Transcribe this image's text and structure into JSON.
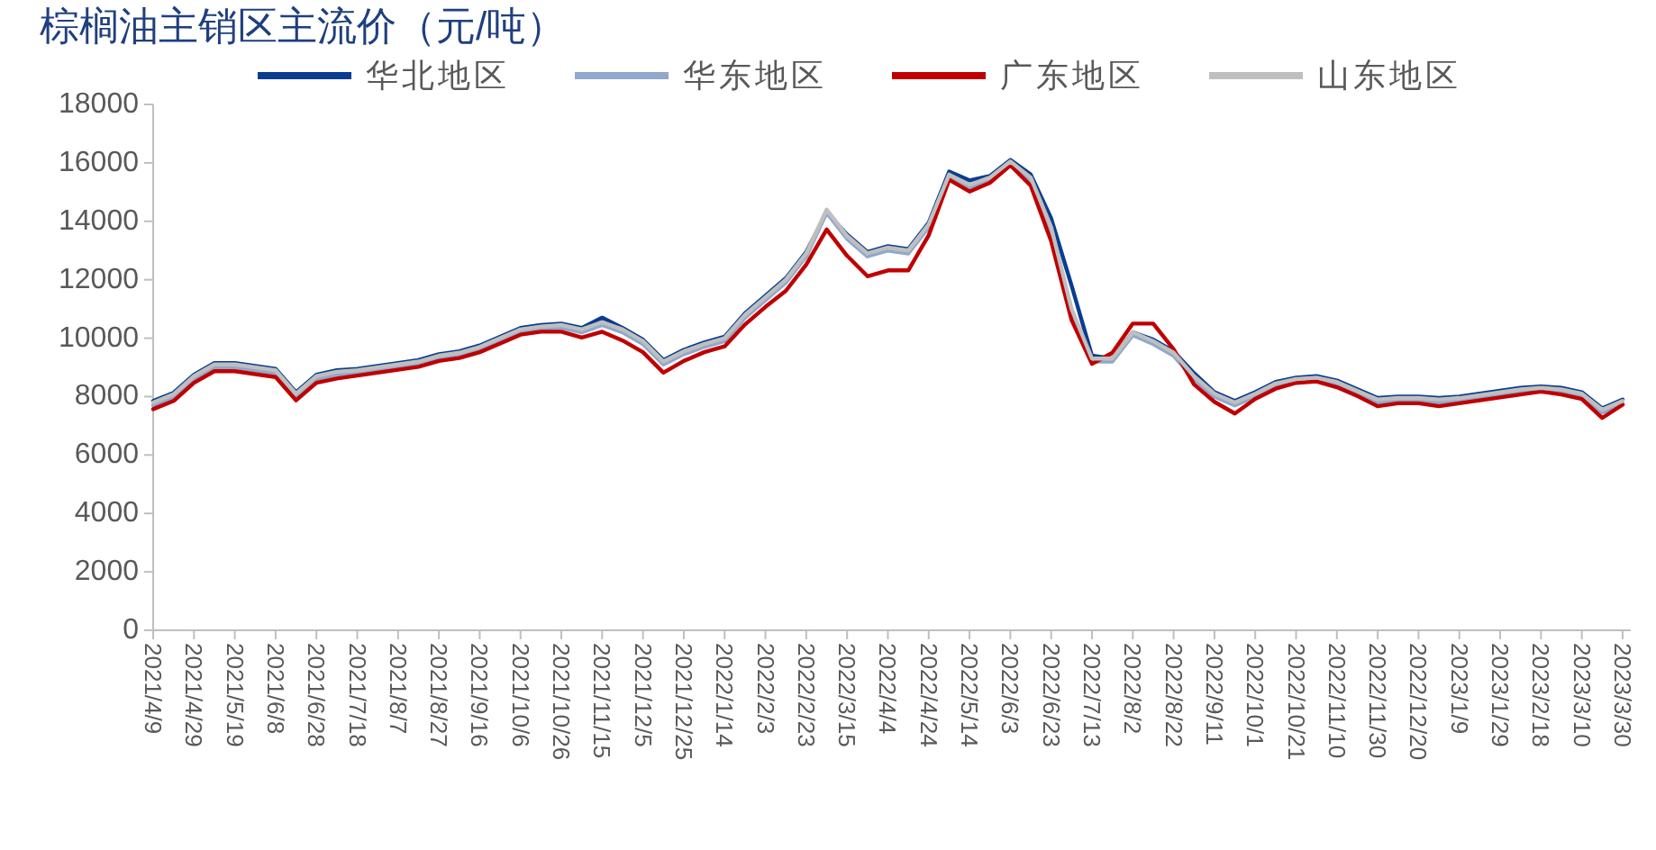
{
  "chart_data": {
    "type": "line",
    "title": "棕榈油主销区主流价（元/吨）",
    "legend": "top",
    "grid": false,
    "x": [
      "2021-04-09",
      "2021-04-19",
      "2021-04-29",
      "2021-05-09",
      "2021-05-19",
      "2021-05-29",
      "2021-06-08",
      "2021-06-18",
      "2021-06-28",
      "2021-07-08",
      "2021-07-18",
      "2021-07-28",
      "2021-08-07",
      "2021-08-17",
      "2021-08-27",
      "2021-09-06",
      "2021-09-16",
      "2021-09-26",
      "2021-10-06",
      "2021-10-16",
      "2021-10-26",
      "2021-11-05",
      "2021-11-15",
      "2021-11-25",
      "2021-12-05",
      "2021-12-15",
      "2021-12-25",
      "2022-01-04",
      "2022-01-14",
      "2022-01-24",
      "2022-02-03",
      "2022-02-13",
      "2022-02-23",
      "2022-03-05",
      "2022-03-15",
      "2022-03-25",
      "2022-04-04",
      "2022-04-14",
      "2022-04-24",
      "2022-05-04",
      "2022-05-14",
      "2022-05-24",
      "2022-06-03",
      "2022-06-13",
      "2022-06-23",
      "2022-07-03",
      "2022-07-13",
      "2022-07-23",
      "2022-08-02",
      "2022-08-12",
      "2022-08-22",
      "2022-09-01",
      "2022-09-11",
      "2022-09-21",
      "2022-10-01",
      "2022-10-11",
      "2022-10-21",
      "2022-10-31",
      "2022-11-10",
      "2022-11-20",
      "2022-11-30",
      "2022-12-10",
      "2022-12-20",
      "2022-12-30",
      "2023-01-09",
      "2023-01-19",
      "2023-01-29",
      "2023-02-08",
      "2023-02-18",
      "2023-02-28",
      "2023-03-10",
      "2023-03-20",
      "2023-03-30"
    ],
    "xlim": [
      "2021-04-09",
      "2023-04-03"
    ],
    "xticks": [
      {
        "value": "2021-04-09",
        "label": "2021/4/9"
      },
      {
        "value": "2021-04-29",
        "label": "2021/4/29"
      },
      {
        "value": "2021-05-19",
        "label": "2021/5/19"
      },
      {
        "value": "2021-06-08",
        "label": "2021/6/8"
      },
      {
        "value": "2021-06-28",
        "label": "2021/6/28"
      },
      {
        "value": "2021-07-18",
        "label": "2021/7/18"
      },
      {
        "value": "2021-08-07",
        "label": "2021/8/7"
      },
      {
        "value": "2021-08-27",
        "label": "2021/8/27"
      },
      {
        "value": "2021-09-16",
        "label": "2021/9/16"
      },
      {
        "value": "2021-10-06",
        "label": "2021/10/6"
      },
      {
        "value": "2021-10-26",
        "label": "2021/10/26"
      },
      {
        "value": "2021-11-15",
        "label": "2021/11/15"
      },
      {
        "value": "2021-12-05",
        "label": "2021/12/5"
      },
      {
        "value": "2021-12-25",
        "label": "2021/12/25"
      },
      {
        "value": "2022-01-14",
        "label": "2022/1/14"
      },
      {
        "value": "2022-02-03",
        "label": "2022/2/3"
      },
      {
        "value": "2022-02-23",
        "label": "2022/2/23"
      },
      {
        "value": "2022-03-15",
        "label": "2022/3/15"
      },
      {
        "value": "2022-04-04",
        "label": "2022/4/4"
      },
      {
        "value": "2022-04-24",
        "label": "2022/4/24"
      },
      {
        "value": "2022-05-14",
        "label": "2022/5/14"
      },
      {
        "value": "2022-06-03",
        "label": "2022/6/3"
      },
      {
        "value": "2022-06-23",
        "label": "2022/6/23"
      },
      {
        "value": "2022-07-13",
        "label": "2022/7/13"
      },
      {
        "value": "2022-08-02",
        "label": "2022/8/2"
      },
      {
        "value": "2022-08-22",
        "label": "2022/8/22"
      },
      {
        "value": "2022-09-11",
        "label": "2022/9/11"
      },
      {
        "value": "2022-10-01",
        "label": "2022/10/1"
      },
      {
        "value": "2022-10-21",
        "label": "2022/10/21"
      },
      {
        "value": "2022-11-10",
        "label": "2022/11/10"
      },
      {
        "value": "2022-11-30",
        "label": "2022/11/30"
      },
      {
        "value": "2022-12-20",
        "label": "2022/12/20"
      },
      {
        "value": "2023-01-09",
        "label": "2023/1/9"
      },
      {
        "value": "2023-01-29",
        "label": "2023/1/29"
      },
      {
        "value": "2023-02-18",
        "label": "2023/2/18"
      },
      {
        "value": "2023-03-10",
        "label": "2023/3/10"
      },
      {
        "value": "2023-03-30",
        "label": "2023/3/30"
      }
    ],
    "ylim": [
      0,
      18000
    ],
    "yticks": [
      0,
      2000,
      4000,
      6000,
      8000,
      10000,
      12000,
      14000,
      16000,
      18000
    ],
    "series": [
      {
        "name": "华北地区",
        "color": "#0a3d8f",
        "values": [
          7850,
          8130,
          8750,
          9150,
          9150,
          9050,
          8950,
          8150,
          8750,
          8900,
          8950,
          9050,
          9150,
          9250,
          9450,
          9550,
          9750,
          10050,
          10350,
          10450,
          10500,
          10350,
          10700,
          10350,
          9950,
          9250,
          9600,
          9850,
          10050,
          10850,
          11450,
          12050,
          12950,
          14300,
          13550,
          12950,
          13150,
          13050,
          13950,
          15700,
          15400,
          15550,
          16100,
          15600,
          14100,
          11800,
          9400,
          9300,
          10200,
          9950,
          9550,
          8800,
          8150,
          7850,
          8150,
          8500,
          8650,
          8700,
          8550,
          8250,
          7950,
          8000,
          8000,
          7950,
          8000,
          8100,
          8200,
          8300,
          8350,
          8300,
          8150,
          7600,
          7900
        ]
      },
      {
        "name": "华东地区",
        "color": "#8fa8cc",
        "values": [
          7700,
          7980,
          8600,
          9000,
          9000,
          8900,
          8800,
          8000,
          8600,
          8750,
          8800,
          8900,
          9000,
          9100,
          9300,
          9400,
          9600,
          9900,
          10200,
          10300,
          10350,
          10200,
          10450,
          10200,
          9800,
          9100,
          9450,
          9700,
          9900,
          10700,
          11300,
          11900,
          12800,
          14300,
          13400,
          12800,
          13000,
          12900,
          13800,
          15500,
          15150,
          15400,
          15950,
          15400,
          13700,
          10900,
          9200,
          9200,
          10100,
          9800,
          9400,
          8600,
          8000,
          7700,
          8000,
          8350,
          8500,
          8550,
          8400,
          8100,
          7800,
          7850,
          7850,
          7800,
          7850,
          7950,
          8050,
          8150,
          8200,
          8150,
          8000,
          7450,
          7750
        ]
      },
      {
        "name": "广东地区",
        "color": "#c00000",
        "values": [
          7570,
          7850,
          8470,
          8870,
          8870,
          8770,
          8670,
          7870,
          8470,
          8620,
          8720,
          8820,
          8920,
          9020,
          9220,
          9320,
          9520,
          9820,
          10120,
          10220,
          10220,
          10020,
          10220,
          9920,
          9520,
          8820,
          9220,
          9520,
          9720,
          10470,
          11070,
          11620,
          12520,
          13720,
          12820,
          12120,
          12320,
          12320,
          13520,
          15420,
          15020,
          15320,
          15920,
          15220,
          13320,
          10620,
          9120,
          9500,
          10500,
          10500,
          9620,
          8420,
          7820,
          7420,
          7920,
          8270,
          8470,
          8520,
          8320,
          8020,
          7670,
          7770,
          7770,
          7670,
          7770,
          7870,
          7970,
          8070,
          8170,
          8070,
          7920,
          7270,
          7720
        ]
      },
      {
        "name": "山东地区",
        "color": "#bfbfbf",
        "values": [
          7800,
          8080,
          8700,
          9100,
          9100,
          9000,
          8900,
          8100,
          8700,
          8850,
          8900,
          9000,
          9100,
          9200,
          9400,
          9500,
          9700,
          10000,
          10300,
          10400,
          10450,
          10300,
          10550,
          10300,
          9900,
          9200,
          9550,
          9800,
          10000,
          10800,
          11400,
          12000,
          12900,
          14400,
          13500,
          12900,
          13100,
          13000,
          13900,
          15600,
          15250,
          15500,
          16050,
          15500,
          13800,
          11000,
          9300,
          9300,
          10200,
          9900,
          9500,
          8700,
          8100,
          7800,
          8100,
          8450,
          8600,
          8650,
          8500,
          8200,
          7900,
          7950,
          7950,
          7900,
          7950,
          8050,
          8150,
          8250,
          8300,
          8250,
          8100,
          7550,
          7850
        ]
      }
    ]
  }
}
